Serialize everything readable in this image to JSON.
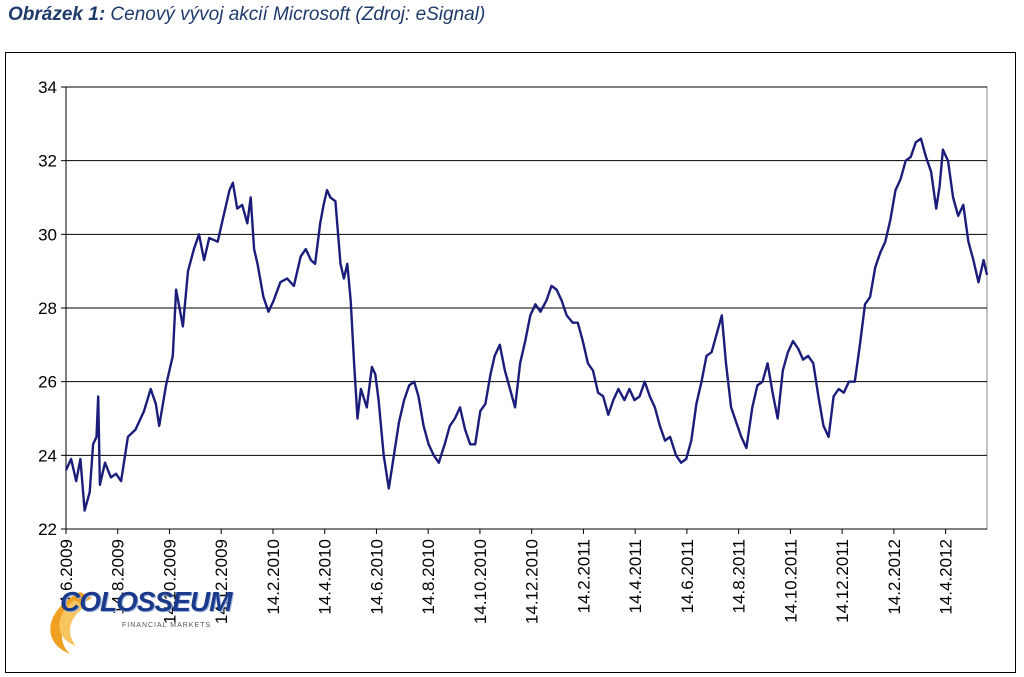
{
  "caption": {
    "prefix": "Obrázek 1:",
    "text": " Cenový vývoj akcií Microsoft (Zdroj: eSignal)"
  },
  "logo": {
    "name": "COLOSSEUM",
    "sub": "FINANCIAL MARKETS"
  },
  "colors": {
    "line": "#1b1d7a",
    "grid": "#000000",
    "caption": "#1f3b6b",
    "logo": "#1b3a8a",
    "swoosh": "#f0a020"
  },
  "chart_data": {
    "type": "line",
    "title": "",
    "xlabel": "",
    "ylabel": "",
    "ylim": [
      22,
      34
    ],
    "yticks": [
      22,
      24,
      26,
      28,
      30,
      32,
      34
    ],
    "grid": "horizontal",
    "x_start": "2009-06-14",
    "x_end": "2012-06-05",
    "xtick_labels": [
      "14.6.2009",
      "14.8.2009",
      "14.10.2009",
      "14.12.2009",
      "14.2.2010",
      "14.4.2010",
      "14.6.2010",
      "14.8.2010",
      "14.10.2010",
      "14.12.2010",
      "14.2.2011",
      "14.4.2011",
      "14.6.2011",
      "14.8.2011",
      "14.10.2011",
      "14.12.2011",
      "14.2.2012",
      "14.4.2012"
    ],
    "series": [
      {
        "points": [
          [
            "2009-06-14",
            23.6
          ],
          [
            "2009-06-20",
            23.9
          ],
          [
            "2009-06-26",
            23.3
          ],
          [
            "2009-07-01",
            23.9
          ],
          [
            "2009-07-06",
            22.5
          ],
          [
            "2009-07-12",
            23.0
          ],
          [
            "2009-07-16",
            24.3
          ],
          [
            "2009-07-20",
            24.5
          ],
          [
            "2009-07-22",
            25.6
          ],
          [
            "2009-07-24",
            23.2
          ],
          [
            "2009-07-30",
            23.8
          ],
          [
            "2009-08-06",
            23.4
          ],
          [
            "2009-08-12",
            23.5
          ],
          [
            "2009-08-18",
            23.3
          ],
          [
            "2009-08-26",
            24.5
          ],
          [
            "2009-09-04",
            24.7
          ],
          [
            "2009-09-14",
            25.2
          ],
          [
            "2009-09-22",
            25.8
          ],
          [
            "2009-09-28",
            25.4
          ],
          [
            "2009-10-02",
            24.8
          ],
          [
            "2009-10-10",
            25.9
          ],
          [
            "2009-10-18",
            26.7
          ],
          [
            "2009-10-22",
            28.5
          ],
          [
            "2009-10-26",
            28.0
          ],
          [
            "2009-10-30",
            27.5
          ],
          [
            "2009-11-05",
            29.0
          ],
          [
            "2009-11-12",
            29.6
          ],
          [
            "2009-11-18",
            30.0
          ],
          [
            "2009-11-24",
            29.3
          ],
          [
            "2009-11-30",
            29.9
          ],
          [
            "2009-12-10",
            29.8
          ],
          [
            "2009-12-18",
            30.6
          ],
          [
            "2009-12-24",
            31.2
          ],
          [
            "2009-12-28",
            31.4
          ],
          [
            "2010-01-02",
            30.7
          ],
          [
            "2010-01-08",
            30.8
          ],
          [
            "2010-01-14",
            30.3
          ],
          [
            "2010-01-18",
            31.0
          ],
          [
            "2010-01-22",
            29.6
          ],
          [
            "2010-01-26",
            29.2
          ],
          [
            "2010-02-02",
            28.3
          ],
          [
            "2010-02-08",
            27.9
          ],
          [
            "2010-02-14",
            28.2
          ],
          [
            "2010-02-22",
            28.7
          ],
          [
            "2010-03-02",
            28.8
          ],
          [
            "2010-03-10",
            28.6
          ],
          [
            "2010-03-18",
            29.4
          ],
          [
            "2010-03-24",
            29.6
          ],
          [
            "2010-03-30",
            29.3
          ],
          [
            "2010-04-04",
            29.2
          ],
          [
            "2010-04-10",
            30.3
          ],
          [
            "2010-04-14",
            30.8
          ],
          [
            "2010-04-18",
            31.2
          ],
          [
            "2010-04-22",
            31.0
          ],
          [
            "2010-04-28",
            30.9
          ],
          [
            "2010-05-04",
            29.2
          ],
          [
            "2010-05-08",
            28.8
          ],
          [
            "2010-05-12",
            29.2
          ],
          [
            "2010-05-16",
            28.2
          ],
          [
            "2010-05-20",
            26.5
          ],
          [
            "2010-05-24",
            25.0
          ],
          [
            "2010-05-28",
            25.8
          ],
          [
            "2010-06-04",
            25.3
          ],
          [
            "2010-06-10",
            26.4
          ],
          [
            "2010-06-14",
            26.2
          ],
          [
            "2010-06-18",
            25.5
          ],
          [
            "2010-06-24",
            24.0
          ],
          [
            "2010-06-30",
            23.1
          ],
          [
            "2010-07-06",
            24.0
          ],
          [
            "2010-07-12",
            24.9
          ],
          [
            "2010-07-18",
            25.5
          ],
          [
            "2010-07-24",
            25.9
          ],
          [
            "2010-07-30",
            26.0
          ],
          [
            "2010-08-04",
            25.6
          ],
          [
            "2010-08-10",
            24.8
          ],
          [
            "2010-08-16",
            24.3
          ],
          [
            "2010-08-22",
            24.0
          ],
          [
            "2010-08-28",
            23.8
          ],
          [
            "2010-09-04",
            24.3
          ],
          [
            "2010-09-10",
            24.8
          ],
          [
            "2010-09-16",
            25.0
          ],
          [
            "2010-09-22",
            25.3
          ],
          [
            "2010-09-28",
            24.7
          ],
          [
            "2010-10-04",
            24.3
          ],
          [
            "2010-10-10",
            24.3
          ],
          [
            "2010-10-16",
            25.2
          ],
          [
            "2010-10-22",
            25.4
          ],
          [
            "2010-10-28",
            26.2
          ],
          [
            "2010-11-02",
            26.7
          ],
          [
            "2010-11-08",
            27.0
          ],
          [
            "2010-11-14",
            26.3
          ],
          [
            "2010-11-20",
            25.8
          ],
          [
            "2010-11-26",
            25.3
          ],
          [
            "2010-12-02",
            26.5
          ],
          [
            "2010-12-08",
            27.1
          ],
          [
            "2010-12-14",
            27.8
          ],
          [
            "2010-12-20",
            28.1
          ],
          [
            "2010-12-26",
            27.9
          ],
          [
            "2011-01-02",
            28.2
          ],
          [
            "2011-01-08",
            28.6
          ],
          [
            "2011-01-14",
            28.5
          ],
          [
            "2011-01-20",
            28.2
          ],
          [
            "2011-01-26",
            27.8
          ],
          [
            "2011-02-02",
            27.6
          ],
          [
            "2011-02-08",
            27.6
          ],
          [
            "2011-02-14",
            27.1
          ],
          [
            "2011-02-20",
            26.5
          ],
          [
            "2011-02-26",
            26.3
          ],
          [
            "2011-03-04",
            25.7
          ],
          [
            "2011-03-10",
            25.6
          ],
          [
            "2011-03-16",
            25.1
          ],
          [
            "2011-03-22",
            25.5
          ],
          [
            "2011-03-28",
            25.8
          ],
          [
            "2011-04-04",
            25.5
          ],
          [
            "2011-04-10",
            25.8
          ],
          [
            "2011-04-16",
            25.5
          ],
          [
            "2011-04-22",
            25.6
          ],
          [
            "2011-04-28",
            26.0
          ],
          [
            "2011-05-04",
            25.6
          ],
          [
            "2011-05-10",
            25.3
          ],
          [
            "2011-05-16",
            24.8
          ],
          [
            "2011-05-22",
            24.4
          ],
          [
            "2011-05-28",
            24.5
          ],
          [
            "2011-06-04",
            24.0
          ],
          [
            "2011-06-10",
            23.8
          ],
          [
            "2011-06-16",
            23.9
          ],
          [
            "2011-06-22",
            24.4
          ],
          [
            "2011-06-28",
            25.4
          ],
          [
            "2011-07-04",
            26.0
          ],
          [
            "2011-07-10",
            26.7
          ],
          [
            "2011-07-16",
            26.8
          ],
          [
            "2011-07-22",
            27.3
          ],
          [
            "2011-07-28",
            27.8
          ],
          [
            "2011-08-02",
            26.5
          ],
          [
            "2011-08-08",
            25.3
          ],
          [
            "2011-08-14",
            24.9
          ],
          [
            "2011-08-20",
            24.5
          ],
          [
            "2011-08-26",
            24.2
          ],
          [
            "2011-09-02",
            25.3
          ],
          [
            "2011-09-08",
            25.9
          ],
          [
            "2011-09-14",
            26.0
          ],
          [
            "2011-09-20",
            26.5
          ],
          [
            "2011-09-26",
            25.7
          ],
          [
            "2011-10-02",
            25.0
          ],
          [
            "2011-10-08",
            26.3
          ],
          [
            "2011-10-14",
            26.8
          ],
          [
            "2011-10-20",
            27.1
          ],
          [
            "2011-10-26",
            26.9
          ],
          [
            "2011-11-01",
            26.6
          ],
          [
            "2011-11-07",
            26.7
          ],
          [
            "2011-11-13",
            26.5
          ],
          [
            "2011-11-19",
            25.6
          ],
          [
            "2011-11-25",
            24.8
          ],
          [
            "2011-12-01",
            24.5
          ],
          [
            "2011-12-07",
            25.6
          ],
          [
            "2011-12-13",
            25.8
          ],
          [
            "2011-12-19",
            25.7
          ],
          [
            "2011-12-25",
            26.0
          ],
          [
            "2012-01-01",
            26.0
          ],
          [
            "2012-01-07",
            27.0
          ],
          [
            "2012-01-13",
            28.1
          ],
          [
            "2012-01-19",
            28.3
          ],
          [
            "2012-01-25",
            29.1
          ],
          [
            "2012-01-31",
            29.5
          ],
          [
            "2012-02-06",
            29.8
          ],
          [
            "2012-02-12",
            30.4
          ],
          [
            "2012-02-18",
            31.2
          ],
          [
            "2012-02-24",
            31.5
          ],
          [
            "2012-03-01",
            32.0
          ],
          [
            "2012-03-07",
            32.1
          ],
          [
            "2012-03-13",
            32.5
          ],
          [
            "2012-03-19",
            32.6
          ],
          [
            "2012-03-25",
            32.1
          ],
          [
            "2012-03-31",
            31.7
          ],
          [
            "2012-04-06",
            30.7
          ],
          [
            "2012-04-10",
            31.3
          ],
          [
            "2012-04-14",
            32.3
          ],
          [
            "2012-04-20",
            32.0
          ],
          [
            "2012-04-26",
            31.0
          ],
          [
            "2012-05-02",
            30.5
          ],
          [
            "2012-05-08",
            30.8
          ],
          [
            "2012-05-14",
            29.8
          ],
          [
            "2012-05-20",
            29.3
          ],
          [
            "2012-05-26",
            28.7
          ],
          [
            "2012-06-01",
            29.3
          ],
          [
            "2012-06-05",
            28.9
          ]
        ]
      }
    ]
  }
}
